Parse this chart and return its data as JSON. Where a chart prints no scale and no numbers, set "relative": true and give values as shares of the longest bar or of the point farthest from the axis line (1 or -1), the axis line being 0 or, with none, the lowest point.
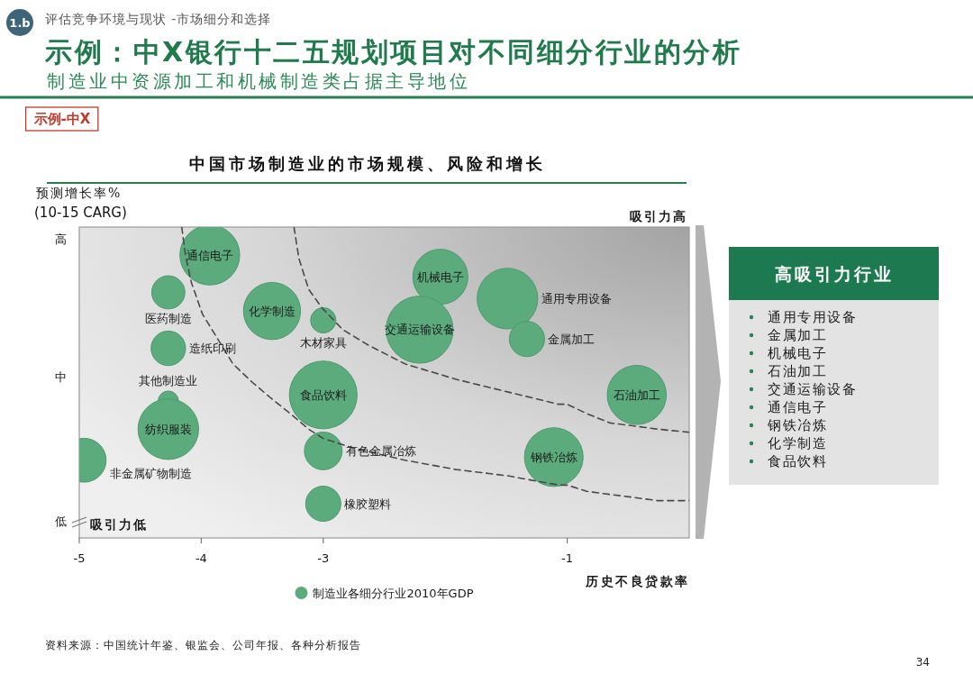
{
  "chart_data": [
    {
      "type": "bubble",
      "title": "示例：中X银行十二五规划项目对不同细分行业的分析",
      "subtitle": "制造业中资源加工和机械制造类占据主导地位",
      "xlabel": "历史不良贷款率",
      "ylabel": "预测增长率%\n(10-15 CARG)",
      "xlim": [
        -5,
        0
      ],
      "xticks": [
        -5,
        -4,
        -3,
        -1
      ],
      "relative": true,
      "legend": "bottom",
      "series": [
        {
          "name": "制造业各细分行业2010年GDP",
          "color": "#5bab7d",
          "x": [
            -3.93,
            -4.27,
            -4.27,
            -4.27,
            -4.27,
            -4.96,
            -3.42,
            -3,
            -2.04,
            -1.49,
            -2.21,
            -1.33,
            -3,
            -0.43,
            -3,
            -1.11,
            -3
          ],
          "values": [
            0.91,
            0.79,
            0.61,
            0.44,
            0.35,
            0.25,
            0.73,
            0.7,
            0.84,
            0.77,
            0.67,
            0.64,
            0.46,
            0.46,
            0.28,
            0.26,
            0.11
          ],
          "sizes": [
            0.78,
            0.24,
            0.26,
            0.09,
            0.8,
            0.42,
            0.71,
            0.14,
            0.66,
            0.8,
            0.98,
            0.27,
            1,
            0.76,
            0.31,
            0.75,
            0.27
          ]
        },
        {
          "type": "line",
          "color": "#4a4a4a",
          "line_style": "dashed",
          "x": [
            -4.16,
            -4.13,
            -4.08,
            -3.99,
            -3.85,
            -3.74,
            -3.58,
            -3.43,
            -3.27,
            -3.12,
            -3,
            -2.76,
            -2.33,
            -1.91,
            -1.49,
            -1.07,
            -1,
            -0.84,
            -0.65,
            -0.45,
            -0.26,
            0
          ],
          "values": [
            1,
            0.91,
            0.82,
            0.72,
            0.63,
            0.56,
            0.5,
            0.45,
            0.4,
            0.35,
            0.32,
            0.29,
            0.25,
            0.22,
            0.2,
            0.17,
            0.17,
            0.15,
            0.14,
            0.13,
            0.12,
            0.12
          ]
        },
        {
          "type": "line",
          "color": "#4a4a4a",
          "line_style": "dashed",
          "x": [
            -3.24,
            -3.2,
            -3.12,
            -3.01,
            -2.84,
            -2.63,
            -2.33,
            -1.91,
            -1.49,
            -1.07,
            -1,
            -0.84,
            -0.65,
            -0.45,
            -0.26,
            0
          ],
          "values": [
            1,
            0.9,
            0.8,
            0.74,
            0.67,
            0.62,
            0.56,
            0.51,
            0.47,
            0.43,
            0.43,
            0.4,
            0.37,
            0.36,
            0.35,
            0.34
          ]
        }
      ],
      "annotations": [
        "1.b",
        "评估竞争环境与现状 -市场细分和选择",
        "示例-中X",
        "中国市场制造业的市场规模、风险和增长",
        "吸引力高",
        "吸引力低",
        "资料来源：中国统计年鉴、银监会、公司年报、各种分析报告",
        "34",
        "高",
        "中",
        "低",
        {
          "text": "通信电子",
          "x": -3.93,
          "y": 0.91
        },
        {
          "text": "医药制造",
          "x": -4.27,
          "y": 0.79
        },
        {
          "text": "造纸印刷",
          "x": -4.27,
          "y": 0.61
        },
        {
          "text": "其他制造业",
          "x": -4.27,
          "y": 0.44
        },
        {
          "text": "纺织服装",
          "x": -4.27,
          "y": 0.35
        },
        {
          "text": "非金属矿物制造",
          "x": -4.96,
          "y": 0.25
        },
        {
          "text": "化学制造",
          "x": -3.42,
          "y": 0.73
        },
        {
          "text": "木材家具",
          "x": -3,
          "y": 0.7
        },
        {
          "text": "机械电子",
          "x": -2.04,
          "y": 0.84
        },
        {
          "text": "通用专用设备",
          "x": -1.49,
          "y": 0.77
        },
        {
          "text": "交通运输设备",
          "x": -2.21,
          "y": 0.67
        },
        {
          "text": "金属加工",
          "x": -1.33,
          "y": 0.64
        },
        {
          "text": "食品饮料",
          "x": -3,
          "y": 0.46
        },
        {
          "text": "石油加工",
          "x": -0.43,
          "y": 0.46
        },
        {
          "text": "有色金属冶炼",
          "x": -3,
          "y": 0.28
        },
        {
          "text": "钢铁冶炼",
          "x": -1.11,
          "y": 0.26
        },
        {
          "text": "橡胶塑料",
          "x": -3,
          "y": 0.11
        }
      ]
    },
    {
      "type": "other",
      "title": "高吸引力行业",
      "annotations": [
        "通用专用设备",
        "金属加工",
        "机械电子",
        "石油加工",
        "交通运输设备",
        "通信电子",
        "钢铁冶炼",
        "化学制造",
        "食品饮料"
      ]
    }
  ]
}
